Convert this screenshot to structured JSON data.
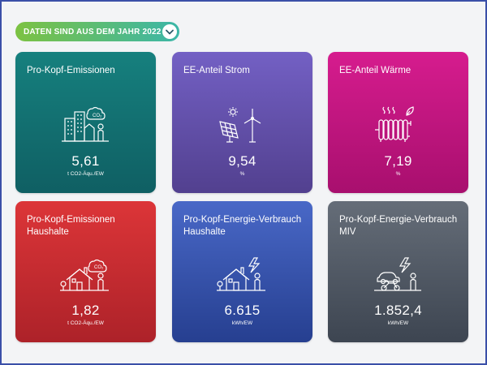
{
  "filter": {
    "label": "DATEN SIND AUS DEM JAHR 2022",
    "toggle_icon": "chevron-down-icon"
  },
  "cards": [
    {
      "title": "Pro-Kopf-Emissionen",
      "value": "5,61",
      "unit": "t CO2-Äqu./EW",
      "icon": "city-co2-icon",
      "icon_text": "CO₂",
      "color": "#137070"
    },
    {
      "title": "EE-Anteil Strom",
      "value": "9,54",
      "unit": "%",
      "icon": "solar-wind-icon",
      "color": "#6350a8"
    },
    {
      "title": "EE-Anteil Wärme",
      "value": "7,19",
      "unit": "%",
      "icon": "radiator-icon",
      "color": "#c0157e"
    },
    {
      "title": "Pro-Kopf-Emissionen Haushalte",
      "value": "1,82",
      "unit": "t CO2-Äqu./EW",
      "icon": "house-co2-icon",
      "icon_text": "CO₂",
      "color": "#c42b30"
    },
    {
      "title": "Pro-Kopf-Energie-Verbrauch Haushalte",
      "value": "6.615",
      "unit": "kWh/EW",
      "icon": "house-energy-icon",
      "color": "#3452a8"
    },
    {
      "title": "Pro-Kopf-Energie-Verbrauch MIV",
      "value": "1.852,4",
      "unit": "kWh/EW",
      "icon": "vehicles-energy-icon",
      "color": "#505864"
    }
  ]
}
